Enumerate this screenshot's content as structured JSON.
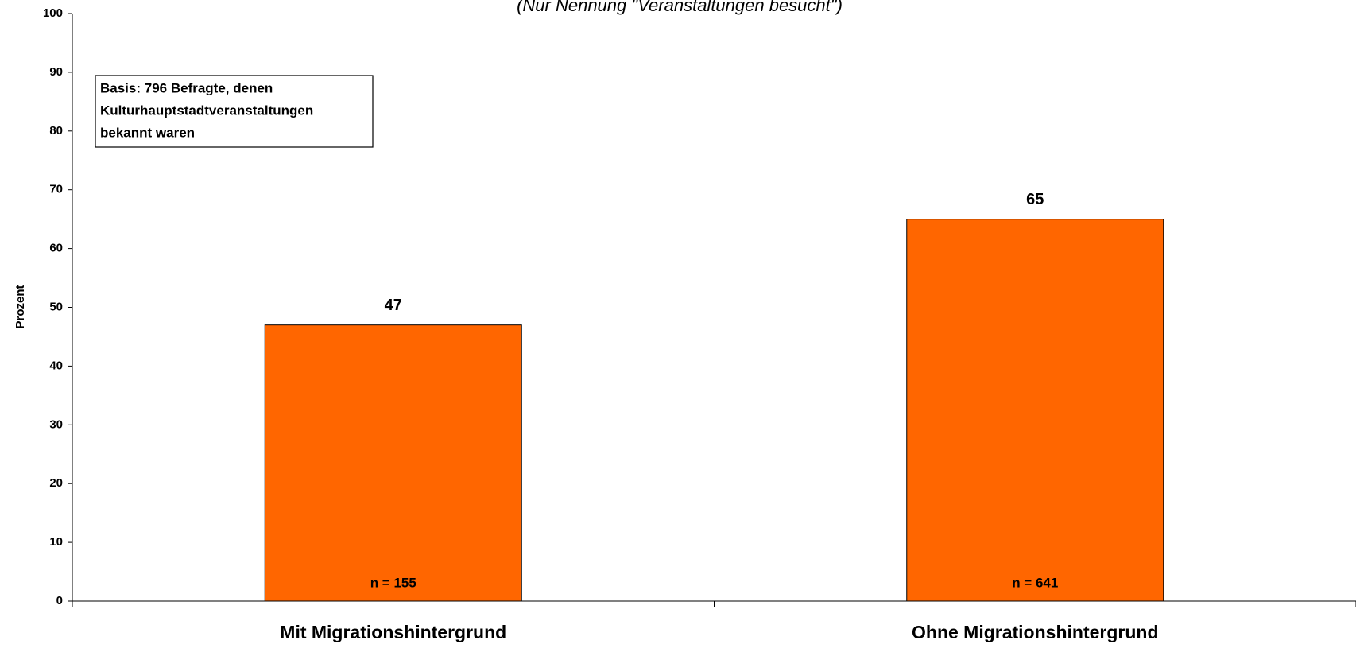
{
  "chart_data": {
    "type": "bar",
    "subtitle": "(Nur Nennung \"Veranstaltungen besucht\")",
    "y_label": "Prozent",
    "categories": [
      "Mit Migrationshintergrund",
      "Ohne Migrationshintergrund"
    ],
    "values": [
      47,
      65
    ],
    "bar_notes": [
      "n = 155",
      "n = 641"
    ],
    "color": "#ff6600",
    "ylim": [
      0,
      100
    ],
    "yticks": [
      0,
      10,
      20,
      30,
      40,
      50,
      60,
      70,
      80,
      90,
      100
    ],
    "grid": false,
    "annotation": [
      "Basis: 796 Befragte, denen",
      "Kulturhauptstadtveranstaltungen",
      "bekannt waren"
    ]
  }
}
